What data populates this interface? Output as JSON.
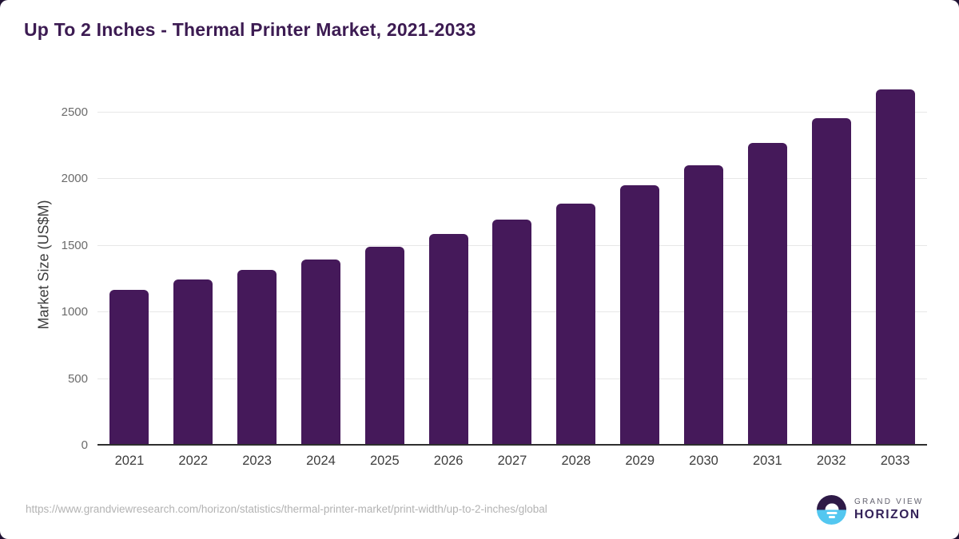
{
  "title": "Up To 2 Inches - Thermal Printer Market, 2021-2033",
  "chart_data": {
    "type": "bar",
    "title": "Up To 2 Inches - Thermal Printer Market, 2021-2033",
    "categories": [
      "2021",
      "2022",
      "2023",
      "2024",
      "2025",
      "2026",
      "2027",
      "2028",
      "2029",
      "2030",
      "2031",
      "2032",
      "2033"
    ],
    "values": [
      1170,
      1245,
      1315,
      1395,
      1490,
      1585,
      1695,
      1815,
      1950,
      2100,
      2270,
      2455,
      2670
    ],
    "xlabel": "",
    "ylabel": "Market Size (US$M)",
    "ylim": [
      0,
      2800
    ],
    "yticks": [
      0,
      500,
      1000,
      1500,
      2000,
      2500
    ],
    "grid": "horizontal-only",
    "legend_position": "none",
    "bar_color": "#45195a"
  },
  "footer": {
    "source_url": "https://www.grandviewresearch.com/horizon/statistics/thermal-printer-market/print-width/up-to-2-inches/global",
    "logo": {
      "line1": "GRAND VIEW",
      "line2": "HORIZON"
    }
  },
  "colors": {
    "title_text": "#3c1b52",
    "bar_fill": "#45195a",
    "gridline": "#e7e7e7",
    "axis_line": "#2e2e2e",
    "y_tick_text": "#6b6b6b",
    "x_tick_text": "#3d3d3d",
    "source_text": "#b3b3b3",
    "logo_circle_top": "#2e1a47",
    "logo_circle_bottom": "#53c7f0",
    "logo_horizon_text": "#342259"
  }
}
